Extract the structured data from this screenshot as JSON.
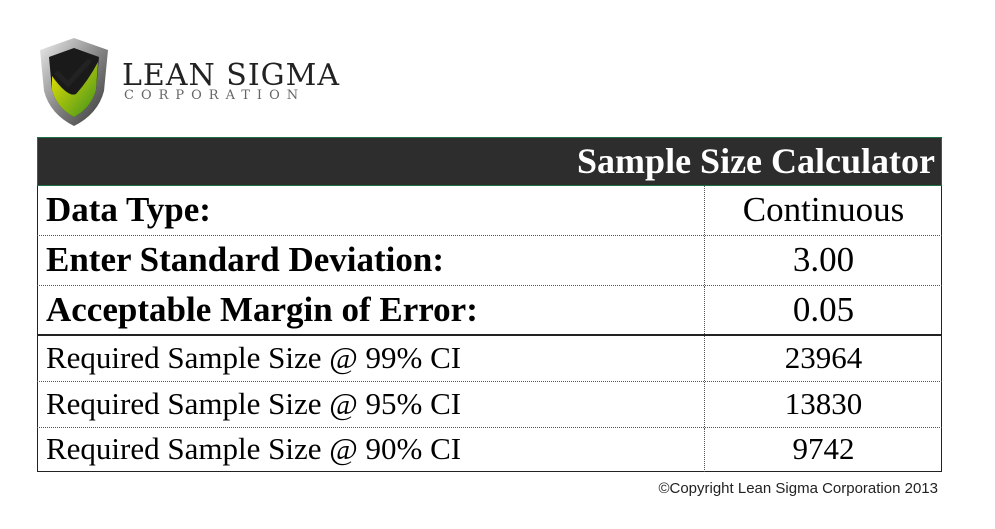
{
  "logo": {
    "name": "LEAN SIGMA",
    "sub": "CORPORATION"
  },
  "table": {
    "title": "Sample Size Calculator",
    "rows": [
      [
        "Data Type:",
        "Continuous"
      ],
      [
        "Enter Standard Deviation:",
        "3.00"
      ],
      [
        "Acceptable Margin of Error:",
        "0.05"
      ],
      [
        "Required Sample Size @ 99% CI",
        "23964"
      ],
      [
        "Required Sample Size @ 95% CI",
        "13830"
      ],
      [
        "Required Sample Size @ 90% CI",
        "9742"
      ]
    ]
  },
  "footer": {
    "copyright": "©Copyright Lean Sigma Corporation 2013"
  }
}
